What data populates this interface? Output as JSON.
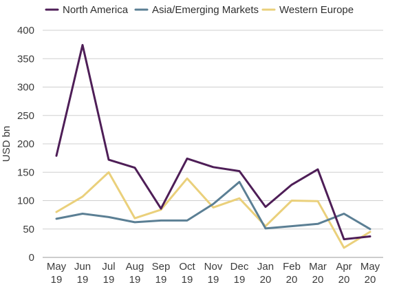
{
  "chart_data": {
    "type": "line",
    "title": "",
    "xlabel": "",
    "ylabel": "USD bn",
    "ylim": [
      0,
      400
    ],
    "yticks": [
      0,
      50,
      100,
      150,
      200,
      250,
      300,
      350,
      400
    ],
    "grid": true,
    "legend_position": "top",
    "categories": [
      [
        "May",
        "19"
      ],
      [
        "Jun",
        "19"
      ],
      [
        "Jul",
        "19"
      ],
      [
        "Aug",
        "19"
      ],
      [
        "Sep",
        "19"
      ],
      [
        "Oct",
        "19"
      ],
      [
        "Nov",
        "19"
      ],
      [
        "Dec",
        "19"
      ],
      [
        "Jan",
        "20"
      ],
      [
        "Feb",
        "20"
      ],
      [
        "Mar",
        "20"
      ],
      [
        "Apr",
        "20"
      ],
      [
        "May",
        "20"
      ]
    ],
    "series": [
      {
        "name": "North America",
        "color": "#4e1e57",
        "values": [
          179,
          374,
          172,
          158,
          86,
          174,
          159,
          152,
          89,
          128,
          155,
          32,
          37
        ]
      },
      {
        "name": "Asia/Emerging Markets",
        "color": "#5b7f94",
        "values": [
          68,
          77,
          71,
          62,
          65,
          65,
          94,
          133,
          51,
          55,
          59,
          77,
          50
        ]
      },
      {
        "name": "Western Europe",
        "color": "#ead07b",
        "values": [
          80,
          107,
          150,
          69,
          84,
          139,
          88,
          104,
          55,
          100,
          99,
          17,
          45
        ]
      }
    ]
  }
}
